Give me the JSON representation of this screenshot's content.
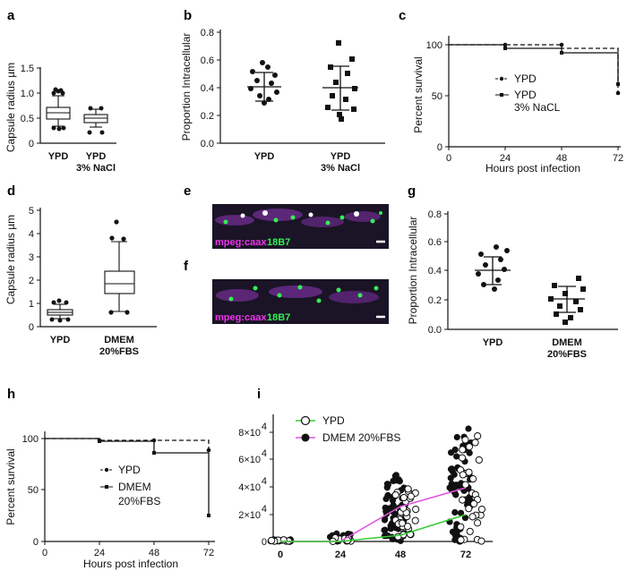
{
  "panels": {
    "a": {
      "label": "a",
      "ylabel": "Capsule radius µm",
      "yticks": [
        "0",
        "0.5",
        "1.0",
        "1.5"
      ],
      "categories": [
        "YPD",
        "YPD",
        "3% NaCl"
      ]
    },
    "b": {
      "label": "b",
      "ylabel": "Proportion Intracellular",
      "yticks": [
        "0.0",
        "0.2",
        "0.4",
        "0.6",
        "0.8"
      ],
      "categories": [
        "YPD",
        "YPD",
        "3% NaCl"
      ]
    },
    "c": {
      "label": "c",
      "ylabel": "Percent survival",
      "xlabel": "Hours post infection",
      "yticks": [
        "0",
        "50",
        "100"
      ],
      "xticks": [
        "0",
        "24",
        "48",
        "72"
      ],
      "legend": [
        "YPD",
        "YPD",
        "3% NaCL"
      ]
    },
    "d": {
      "label": "d",
      "ylabel": "Capsule radius µm",
      "yticks": [
        "0",
        "1",
        "2",
        "3",
        "4",
        "5"
      ],
      "categories": [
        "YPD",
        "DMEM",
        "20%FBS"
      ]
    },
    "e": {
      "label": "e",
      "stain1": "mpeg:caax",
      "stain2": "18B7"
    },
    "f": {
      "label": "f",
      "stain1": "mpeg:caax",
      "stain2": "18B7"
    },
    "g": {
      "label": "g",
      "ylabel": "Proportion Intracellular",
      "yticks": [
        "0.0",
        "0.2",
        "0.4",
        "0.6",
        "0.8"
      ],
      "categories": [
        "YPD",
        "DMEM",
        "20%FBS"
      ]
    },
    "h": {
      "label": "h",
      "ylabel": "Percent survival",
      "xlabel": "Hours post infection",
      "yticks": [
        "0",
        "50",
        "100"
      ],
      "xticks": [
        "0",
        "24",
        "48",
        "72"
      ],
      "legend": [
        "YPD",
        "DMEM",
        "20%FBS"
      ]
    },
    "i": {
      "label": "i",
      "yticks": [
        "0",
        "2×10",
        "4×10",
        "6×10",
        "8×10"
      ],
      "ytick_exp": "4",
      "xticks": [
        "0",
        "24",
        "48",
        "72"
      ],
      "legend": [
        "YPD",
        "DMEM 20%FBS"
      ]
    }
  },
  "colors": {
    "ypd_line": "#33cc33",
    "dmem_line": "#dd55dd",
    "fluor_bg": "#1a1426",
    "magenta": "#ee33ee",
    "green": "#33ee55"
  },
  "chart_data": [
    {
      "panel": "a",
      "type": "box",
      "categories": [
        "YPD",
        "YPD 3% NaCl"
      ],
      "boxes": [
        {
          "whisker_low": 0.35,
          "q1": 0.5,
          "median": 0.62,
          "q3": 0.72,
          "whisker_high": 0.95,
          "outliers": [
            1.0,
            1.05,
            0.95,
            1.0,
            0.3,
            0.28,
            0.32,
            0.3
          ]
        },
        {
          "whisker_low": 0.3,
          "q1": 0.42,
          "median": 0.5,
          "q3": 0.58,
          "whisker_high": 0.68,
          "outliers": [
            0.2,
            0.2,
            0.7,
            0.7
          ]
        }
      ],
      "ylim": [
        0,
        1.5
      ]
    },
    {
      "panel": "b",
      "type": "scatter",
      "categories": [
        "YPD",
        "YPD 3% NaCl"
      ],
      "series": [
        {
          "values": [
            0.58,
            0.55,
            0.52,
            0.48,
            0.45,
            0.42,
            0.4,
            0.36,
            0.33,
            0.3,
            0.28
          ],
          "mean": 0.41,
          "sd_low": 0.31,
          "sd_high": 0.51
        },
        {
          "values": [
            0.72,
            0.6,
            0.55,
            0.5,
            0.46,
            0.42,
            0.38,
            0.34,
            0.3,
            0.25,
            0.2,
            0.12
          ],
          "mean": 0.4,
          "sd_low": 0.24,
          "sd_high": 0.55
        }
      ],
      "ylim": [
        0,
        0.8
      ]
    },
    {
      "panel": "c",
      "type": "line",
      "x": [
        0,
        24,
        48,
        72
      ],
      "series": [
        {
          "name": "YPD",
          "values": [
            100,
            100,
            100,
            54
          ]
        },
        {
          "name": "YPD 3% NaCL",
          "values": [
            100,
            96,
            92,
            62
          ]
        }
      ],
      "ylim": [
        0,
        110
      ]
    },
    {
      "panel": "d",
      "type": "box",
      "categories": [
        "YPD",
        "DMEM 20%FBS"
      ],
      "boxes": [
        {
          "whisker_low": 0.35,
          "q1": 0.5,
          "median": 0.6,
          "q3": 0.72,
          "whisker_high": 0.95,
          "outliers": [
            1.0,
            0.9,
            0.3,
            0.28,
            0.32
          ]
        },
        {
          "whisker_low": 0.65,
          "q1": 1.4,
          "median": 1.85,
          "q3": 2.35,
          "whisker_high": 3.65,
          "outliers": [
            4.5,
            3.8,
            3.7,
            0.6,
            0.6
          ]
        }
      ],
      "ylim": [
        0,
        5
      ]
    },
    {
      "panel": "g",
      "type": "scatter",
      "categories": [
        "YPD",
        "DMEM 20%FBS"
      ],
      "series": [
        {
          "values": [
            0.57,
            0.55,
            0.52,
            0.48,
            0.45,
            0.42,
            0.4,
            0.35,
            0.33,
            0.3
          ],
          "mean": 0.41,
          "sd_low": 0.31,
          "sd_high": 0.51
        },
        {
          "values": [
            0.35,
            0.3,
            0.27,
            0.25,
            0.22,
            0.2,
            0.18,
            0.15,
            0.12,
            0.1,
            0.08
          ],
          "mean": 0.21,
          "sd_low": 0.12,
          "sd_high": 0.3
        }
      ],
      "ylim": [
        0,
        0.8
      ]
    },
    {
      "panel": "h",
      "type": "line",
      "x": [
        0,
        24,
        48,
        72
      ],
      "series": [
        {
          "name": "YPD",
          "values": [
            100,
            98,
            98,
            88
          ]
        },
        {
          "name": "DMEM 20%FBS",
          "values": [
            100,
            98,
            86,
            22
          ]
        }
      ],
      "ylim": [
        0,
        110
      ]
    },
    {
      "panel": "i",
      "type": "scatter",
      "x": [
        0,
        24,
        48,
        72
      ],
      "series": [
        {
          "name": "YPD",
          "line_means": [
            0,
            0,
            5000,
            20000
          ],
          "spread": [
            1500,
            3000,
            40000,
            80000
          ]
        },
        {
          "name": "DMEM 20%FBS",
          "line_means": [
            0,
            0,
            20000,
            40000
          ],
          "spread": [
            1500,
            6000,
            50000,
            86000
          ]
        }
      ],
      "ylim": [
        0,
        90000
      ]
    }
  ]
}
